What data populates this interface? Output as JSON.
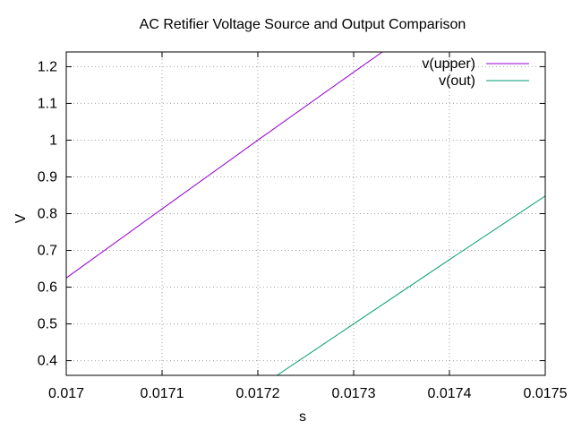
{
  "chart_data": {
    "type": "line",
    "title": "AC Retifier Voltage Source and Output Comparison",
    "xlabel": "s",
    "ylabel": "V",
    "xlim": [
      0.017,
      0.0175
    ],
    "ylim": [
      0.36,
      1.24
    ],
    "x_ticks": [
      "0.017",
      "0.0171",
      "0.0172",
      "0.0173",
      "0.0174",
      "0.0175"
    ],
    "x_tick_values": [
      0.017,
      0.0171,
      0.0172,
      0.0173,
      0.0174,
      0.0175
    ],
    "y_ticks": [
      "0.4",
      "0.5",
      "0.6",
      "0.7",
      "0.8",
      "0.9",
      "1",
      "1.1",
      "1.2"
    ],
    "y_tick_values": [
      0.4,
      0.5,
      0.6,
      0.7,
      0.8,
      0.9,
      1.0,
      1.1,
      1.2
    ],
    "grid": true,
    "legend_position": "top-right",
    "series": [
      {
        "name": "v(upper)",
        "color": "#9400d3",
        "x": [
          0.017,
          0.0171,
          0.0172,
          0.0173,
          0.01733
        ],
        "y": [
          0.625,
          0.813,
          1.0,
          1.185,
          1.24
        ]
      },
      {
        "name": "v(out)",
        "color": "#009e73",
        "x": [
          0.01722,
          0.0173,
          0.0174,
          0.0175
        ],
        "y": [
          0.36,
          0.5,
          0.675,
          0.848
        ]
      }
    ]
  }
}
